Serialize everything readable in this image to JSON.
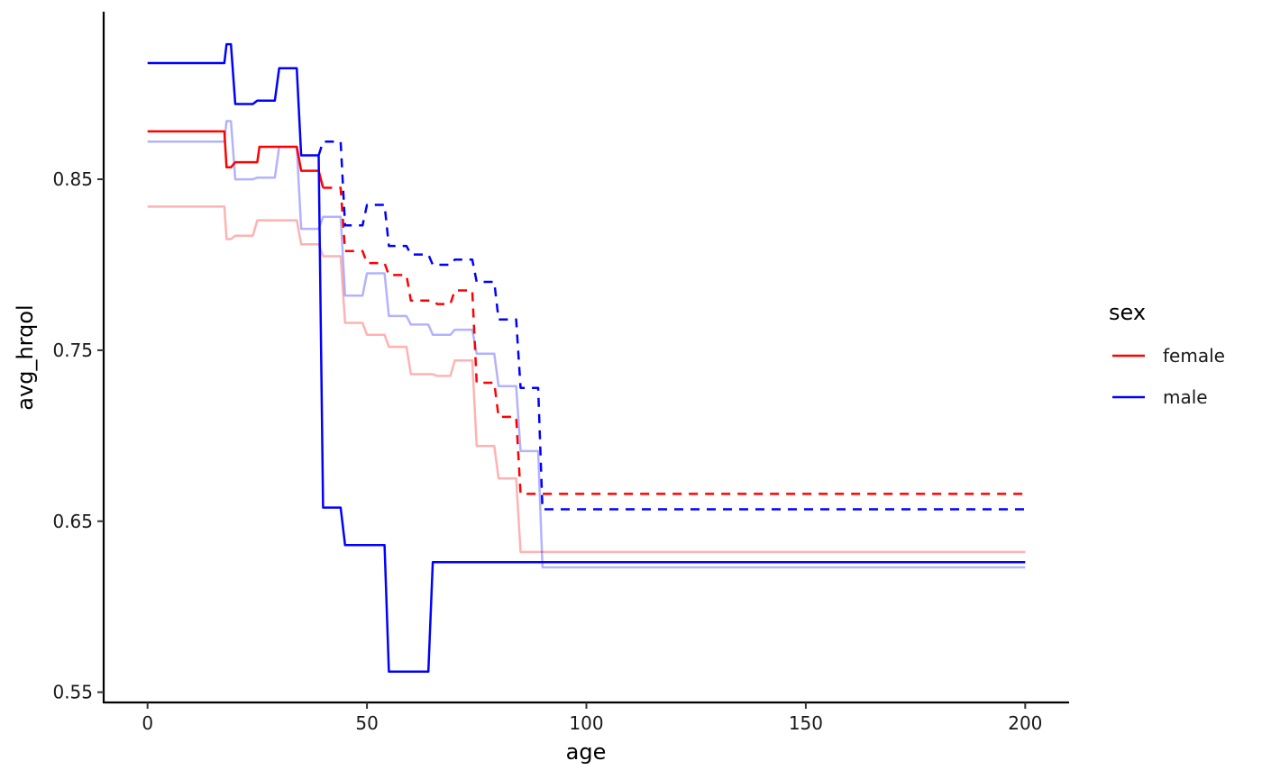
{
  "chart_data": {
    "type": "line",
    "xlabel": "age",
    "ylabel": "avg_hrqol",
    "xlim": [
      -10,
      210
    ],
    "ylim": [
      0.544,
      0.948
    ],
    "xticks": [
      0,
      50,
      100,
      150,
      200
    ],
    "xtick_labels": [
      "0",
      "50",
      "100",
      "150",
      "200"
    ],
    "yticks": [
      0.55,
      0.65,
      0.75,
      0.85
    ],
    "ytick_labels": [
      "0.55",
      "0.65",
      "0.75",
      "0.85"
    ],
    "grid": false,
    "legend": {
      "title": "sex",
      "placement": "right",
      "entries": [
        {
          "label": "female",
          "color": "#ff0000"
        },
        {
          "label": "male",
          "color": "#0000ff"
        }
      ]
    },
    "series": [
      {
        "group": "female",
        "style": "solid",
        "color": "#ff0000",
        "opacity": 1,
        "lw": 2.5,
        "points": [
          [
            0,
            0.878
          ],
          [
            17.5,
            0.878
          ],
          [
            18,
            0.857
          ],
          [
            19,
            0.857
          ],
          [
            20,
            0.86
          ],
          [
            25,
            0.86
          ],
          [
            25.5,
            0.869
          ],
          [
            34,
            0.869
          ],
          [
            35,
            0.855
          ],
          [
            39,
            0.855
          ],
          [
            40,
            0.845
          ]
        ]
      },
      {
        "group": "female",
        "style": "dashed",
        "color": "#ff0000",
        "opacity": 1,
        "lw": 2.5,
        "points": [
          [
            40,
            0.845
          ],
          [
            44,
            0.845
          ],
          [
            45,
            0.808
          ],
          [
            49,
            0.808
          ],
          [
            50,
            0.801
          ],
          [
            54,
            0.801
          ],
          [
            55,
            0.794
          ],
          [
            59,
            0.794
          ],
          [
            60,
            0.779
          ],
          [
            65,
            0.779
          ],
          [
            66,
            0.777
          ],
          [
            69,
            0.777
          ],
          [
            70,
            0.785
          ],
          [
            74,
            0.785
          ],
          [
            75,
            0.731
          ],
          [
            79,
            0.731
          ],
          [
            80,
            0.711
          ],
          [
            84,
            0.711
          ],
          [
            85,
            0.666
          ],
          [
            200,
            0.666
          ]
        ]
      },
      {
        "group": "female",
        "style": "solid",
        "color": "#ff0000",
        "opacity": 0.3,
        "lw": 2.5,
        "points": [
          [
            0,
            0.834
          ],
          [
            17.5,
            0.834
          ],
          [
            18,
            0.815
          ],
          [
            19,
            0.815
          ],
          [
            20,
            0.817
          ],
          [
            24,
            0.817
          ],
          [
            25,
            0.826
          ],
          [
            34,
            0.826
          ],
          [
            35,
            0.812
          ],
          [
            39,
            0.812
          ],
          [
            40,
            0.805
          ],
          [
            44,
            0.805
          ],
          [
            45,
            0.766
          ],
          [
            49,
            0.766
          ],
          [
            50,
            0.759
          ],
          [
            54,
            0.759
          ],
          [
            55,
            0.752
          ],
          [
            59,
            0.752
          ],
          [
            60,
            0.736
          ],
          [
            65,
            0.736
          ],
          [
            66,
            0.735
          ],
          [
            69,
            0.735
          ],
          [
            70,
            0.744
          ],
          [
            74,
            0.744
          ],
          [
            75,
            0.694
          ],
          [
            79,
            0.694
          ],
          [
            80,
            0.675
          ],
          [
            84,
            0.675
          ],
          [
            85,
            0.632
          ],
          [
            200,
            0.632
          ]
        ]
      },
      {
        "group": "male",
        "style": "solid",
        "color": "#0000ff",
        "opacity": 1,
        "lw": 2.5,
        "points": [
          [
            0,
            0.918
          ],
          [
            17.5,
            0.918
          ],
          [
            18,
            0.929
          ],
          [
            19,
            0.929
          ],
          [
            20,
            0.894
          ],
          [
            24,
            0.894
          ],
          [
            25,
            0.896
          ],
          [
            29,
            0.896
          ],
          [
            30,
            0.915
          ],
          [
            34,
            0.915
          ],
          [
            35,
            0.864
          ],
          [
            39,
            0.864
          ],
          [
            40,
            0.658
          ],
          [
            44,
            0.658
          ],
          [
            45,
            0.636
          ],
          [
            54,
            0.636
          ],
          [
            55,
            0.562
          ],
          [
            64,
            0.562
          ],
          [
            65,
            0.626
          ],
          [
            200,
            0.626
          ]
        ]
      },
      {
        "group": "male",
        "style": "dashed",
        "color": "#0000ff",
        "opacity": 1,
        "lw": 2.5,
        "points": [
          [
            39,
            0.864
          ],
          [
            40,
            0.872
          ],
          [
            44,
            0.872
          ],
          [
            45,
            0.823
          ],
          [
            49,
            0.823
          ],
          [
            50,
            0.835
          ],
          [
            54,
            0.835
          ],
          [
            55,
            0.811
          ],
          [
            59,
            0.811
          ],
          [
            60,
            0.806
          ],
          [
            64,
            0.806
          ],
          [
            65,
            0.8
          ],
          [
            69,
            0.8
          ],
          [
            70,
            0.803
          ],
          [
            74,
            0.803
          ],
          [
            75,
            0.79
          ],
          [
            79,
            0.79
          ],
          [
            80,
            0.768
          ],
          [
            84,
            0.768
          ],
          [
            85,
            0.728
          ],
          [
            89,
            0.728
          ],
          [
            90,
            0.657
          ],
          [
            200,
            0.657
          ]
        ]
      },
      {
        "group": "male",
        "style": "solid",
        "color": "#0000ff",
        "opacity": 0.3,
        "lw": 2.5,
        "points": [
          [
            0,
            0.872
          ],
          [
            17.5,
            0.872
          ],
          [
            18,
            0.884
          ],
          [
            19,
            0.884
          ],
          [
            20,
            0.85
          ],
          [
            24,
            0.85
          ],
          [
            25,
            0.851
          ],
          [
            29,
            0.851
          ],
          [
            30,
            0.869
          ],
          [
            34,
            0.869
          ],
          [
            35,
            0.821
          ],
          [
            39,
            0.821
          ],
          [
            40,
            0.828
          ],
          [
            44,
            0.828
          ],
          [
            45,
            0.782
          ],
          [
            49,
            0.782
          ],
          [
            50,
            0.795
          ],
          [
            54,
            0.795
          ],
          [
            55,
            0.77
          ],
          [
            59,
            0.77
          ],
          [
            60,
            0.765
          ],
          [
            64,
            0.765
          ],
          [
            65,
            0.759
          ],
          [
            69,
            0.759
          ],
          [
            70,
            0.762
          ],
          [
            74,
            0.762
          ],
          [
            75,
            0.748
          ],
          [
            79,
            0.748
          ],
          [
            80,
            0.729
          ],
          [
            84,
            0.729
          ],
          [
            85,
            0.691
          ],
          [
            89,
            0.691
          ],
          [
            90,
            0.623
          ],
          [
            200,
            0.623
          ]
        ]
      }
    ]
  }
}
